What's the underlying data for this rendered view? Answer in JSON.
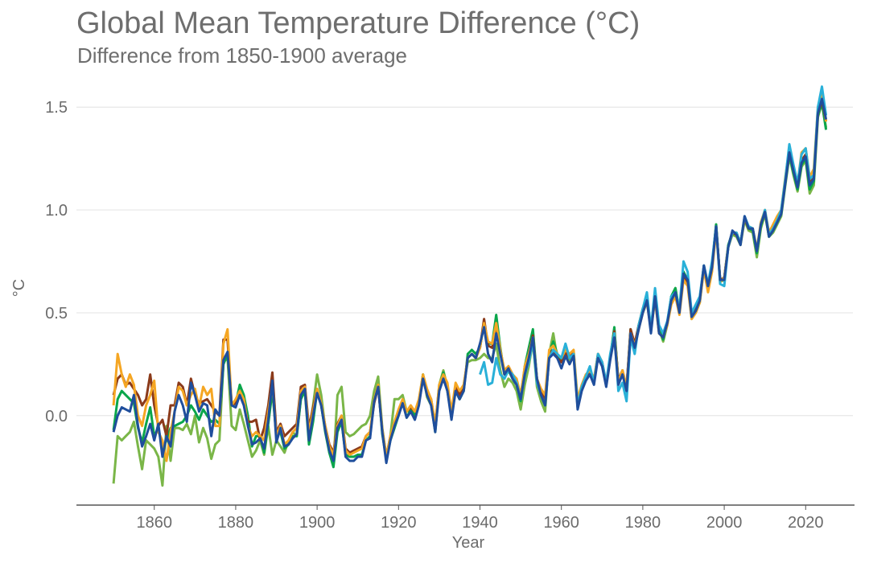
{
  "chart_data": {
    "type": "line",
    "title": "Global Mean Temperature Difference (°C)",
    "subtitle": "Difference from 1850-1900 average",
    "xlabel": "Year",
    "ylabel": "°C",
    "xlim": [
      1841,
      2032
    ],
    "ylim": [
      -0.435,
      1.63
    ],
    "xticks": [
      1860,
      1880,
      1900,
      1920,
      1940,
      1960,
      1980,
      2000,
      2020
    ],
    "yticks": [
      0.0,
      0.5,
      1.0,
      1.5
    ],
    "ytick_labels": [
      "0.0",
      "0.5",
      "1.0",
      "1.5"
    ],
    "grid": "horizontal",
    "legend": "none",
    "series": [
      {
        "color": "#7ab648",
        "start": 1850,
        "values": [
          -0.33,
          -0.1,
          -0.12,
          -0.1,
          -0.08,
          -0.03,
          -0.15,
          -0.26,
          -0.12,
          -0.14,
          -0.16,
          -0.2,
          -0.34,
          -0.05,
          -0.22,
          -0.06,
          -0.06,
          -0.07,
          -0.04,
          -0.09,
          0.0,
          -0.13,
          -0.06,
          -0.11,
          -0.21,
          -0.14,
          -0.12,
          0.26,
          0.28,
          -0.05,
          -0.07,
          0.03,
          -0.04,
          -0.12,
          -0.2,
          -0.17,
          -0.12,
          -0.19,
          -0.05,
          -0.19,
          -0.12,
          -0.15,
          -0.18,
          -0.12,
          -0.08,
          -0.1,
          0.08,
          0.12,
          -0.1,
          0.05,
          0.2,
          0.1,
          -0.06,
          -0.18,
          -0.24,
          0.1,
          0.14,
          -0.08,
          -0.1,
          -0.09,
          -0.07,
          -0.05,
          -0.04,
          0.0,
          0.12,
          0.19,
          -0.06,
          -0.2,
          -0.1,
          0.08,
          0.08,
          0.1,
          0.02,
          0.03,
          -0.01,
          0.07,
          0.2,
          0.09,
          0.05,
          -0.05,
          0.15,
          0.22,
          0.14,
          0.0,
          0.14,
          0.1,
          0.15,
          0.26,
          0.27,
          0.27,
          0.28,
          0.3,
          0.28,
          0.28,
          0.35,
          0.22,
          0.14,
          0.18,
          0.16,
          0.12,
          0.03,
          0.15,
          0.24,
          0.36,
          0.14,
          0.07,
          0.02,
          0.3,
          0.4,
          0.28,
          0.26,
          0.3,
          0.27,
          0.3,
          0.05,
          0.14,
          0.19,
          0.23,
          0.16,
          0.29,
          0.25,
          0.15,
          0.29,
          0.42,
          0.17,
          0.22,
          0.12,
          0.41,
          0.33,
          0.43,
          0.51,
          0.57,
          0.41,
          0.6,
          0.42,
          0.36,
          0.44,
          0.58,
          0.62,
          0.5,
          0.69,
          0.65,
          0.47,
          0.5,
          0.55,
          0.72,
          0.62,
          0.72,
          0.93,
          0.65,
          0.66,
          0.82,
          0.88,
          0.87,
          0.83,
          0.95,
          0.9,
          0.89,
          0.77,
          0.91,
          0.98,
          0.87,
          0.89,
          0.93,
          0.97,
          1.12,
          1.26,
          1.17,
          1.09,
          1.21,
          1.24,
          1.08,
          1.12,
          1.45,
          1.52,
          1.4
        ]
      },
      {
        "color": "#0aa64b",
        "start": 1850,
        "values": [
          -0.07,
          0.08,
          0.12,
          0.1,
          0.08,
          0.06,
          -0.06,
          -0.13,
          -0.04,
          0.04,
          -0.1,
          -0.06,
          -0.16,
          -0.12,
          -0.06,
          -0.05,
          -0.04,
          -0.03,
          0.0,
          0.05,
          0.02,
          -0.02,
          0.03,
          0.0,
          -0.03,
          -0.02,
          -0.04,
          0.25,
          0.3,
          0.05,
          0.06,
          0.15,
          0.1,
          0.0,
          -0.15,
          -0.1,
          -0.1,
          -0.18,
          -0.04,
          0.12,
          -0.1,
          -0.08,
          -0.16,
          -0.14,
          -0.1,
          -0.1,
          0.08,
          0.12,
          -0.14,
          -0.03,
          0.12,
          0.05,
          -0.08,
          -0.18,
          -0.25,
          -0.08,
          -0.03,
          -0.19,
          -0.2,
          -0.2,
          -0.19,
          -0.19,
          -0.12,
          -0.1,
          0.08,
          0.15,
          -0.09,
          -0.21,
          -0.12,
          -0.06,
          0.0,
          0.07,
          -0.01,
          0.03,
          0.0,
          0.06,
          0.2,
          0.1,
          0.06,
          -0.08,
          0.14,
          0.21,
          0.12,
          0.0,
          0.12,
          0.08,
          0.12,
          0.3,
          0.32,
          0.3,
          0.33,
          0.45,
          0.35,
          0.35,
          0.49,
          0.33,
          0.2,
          0.22,
          0.18,
          0.15,
          0.07,
          0.24,
          0.33,
          0.42,
          0.18,
          0.1,
          0.05,
          0.3,
          0.36,
          0.3,
          0.27,
          0.32,
          0.28,
          0.31,
          0.04,
          0.13,
          0.18,
          0.22,
          0.16,
          0.3,
          0.26,
          0.15,
          0.28,
          0.43,
          0.16,
          0.21,
          0.13,
          0.42,
          0.34,
          0.44,
          0.52,
          0.58,
          0.42,
          0.6,
          0.42,
          0.37,
          0.45,
          0.58,
          0.62,
          0.51,
          0.7,
          0.66,
          0.49,
          0.51,
          0.57,
          0.73,
          0.63,
          0.73,
          0.93,
          0.66,
          0.67,
          0.83,
          0.89,
          0.88,
          0.84,
          0.96,
          0.91,
          0.9,
          0.79,
          0.92,
          0.99,
          0.87,
          0.9,
          0.94,
          0.98,
          1.13,
          1.27,
          1.18,
          1.1,
          1.22,
          1.25,
          1.1,
          1.14,
          1.46,
          1.52,
          1.39
        ]
      },
      {
        "color": "#8b3a1a",
        "start": 1850,
        "values": [
          0.1,
          0.18,
          0.2,
          0.15,
          0.16,
          0.13,
          0.1,
          0.05,
          0.08,
          0.2,
          0.05,
          -0.05,
          -0.02,
          -0.1,
          0.05,
          0.05,
          0.16,
          0.14,
          0.05,
          0.18,
          0.1,
          0.06,
          0.07,
          0.08,
          0.05,
          0.02,
          0.0,
          0.37,
          0.37,
          0.05,
          0.06,
          0.12,
          0.06,
          -0.03,
          -0.03,
          -0.02,
          -0.12,
          -0.06,
          0.05,
          0.21,
          -0.08,
          -0.04,
          -0.1,
          -0.08,
          -0.06,
          -0.04,
          0.14,
          0.15,
          -0.06,
          0.04,
          0.13,
          0.05,
          -0.05,
          -0.14,
          -0.18,
          -0.04,
          0.0,
          -0.16,
          -0.18,
          -0.17,
          -0.16,
          -0.15,
          -0.1,
          -0.08,
          0.06,
          0.14,
          -0.07,
          -0.2,
          -0.1,
          -0.04,
          0.02,
          0.06,
          0.02,
          0.04,
          0.02,
          0.06,
          0.18,
          0.12,
          0.08,
          -0.05,
          0.14,
          0.19,
          0.14,
          0.01,
          0.14,
          0.1,
          0.14,
          0.28,
          0.3,
          0.28,
          0.33,
          0.47,
          0.34,
          0.33,
          0.44,
          0.3,
          0.22,
          0.24,
          0.2,
          0.17,
          0.1,
          0.22,
          0.3,
          0.39,
          0.18,
          0.12,
          0.08,
          0.3,
          0.32,
          0.28,
          0.26,
          0.31,
          0.28,
          0.31,
          0.06,
          0.14,
          0.19,
          0.22,
          0.17,
          0.3,
          0.26,
          0.16,
          0.28,
          0.41,
          0.17,
          0.22,
          0.14,
          0.42,
          0.35,
          0.44,
          0.52,
          0.56,
          0.42,
          0.58,
          0.4,
          0.38,
          0.45,
          0.56,
          0.6,
          0.5,
          0.68,
          0.65,
          0.48,
          0.52,
          0.57,
          0.72,
          0.62,
          0.72,
          0.92,
          0.66,
          0.67,
          0.82,
          0.89,
          0.88,
          0.84,
          0.96,
          0.91,
          0.91,
          0.8,
          0.93,
          0.99,
          0.88,
          0.91,
          0.95,
          0.99,
          1.14,
          1.28,
          1.2,
          1.12,
          1.24,
          1.27,
          1.13,
          1.16,
          1.47,
          1.53,
          1.43
        ]
      },
      {
        "color": "#f5a623",
        "start": 1850,
        "values": [
          0.05,
          0.3,
          0.2,
          0.14,
          0.2,
          0.15,
          0.0,
          -0.05,
          0.05,
          0.1,
          0.17,
          -0.08,
          -0.12,
          -0.22,
          -0.08,
          0.02,
          0.14,
          0.12,
          0.05,
          0.1,
          0.13,
          0.04,
          0.14,
          0.1,
          0.13,
          -0.05,
          -0.05,
          0.35,
          0.42,
          0.05,
          0.08,
          0.12,
          0.08,
          -0.05,
          -0.1,
          -0.08,
          -0.1,
          -0.12,
          0.02,
          0.15,
          -0.1,
          -0.05,
          -0.14,
          -0.12,
          -0.08,
          -0.06,
          0.12,
          0.14,
          -0.08,
          0.02,
          0.13,
          0.06,
          -0.05,
          -0.15,
          -0.19,
          -0.05,
          0.0,
          -0.17,
          -0.19,
          -0.18,
          -0.17,
          -0.16,
          -0.1,
          -0.08,
          0.08,
          0.15,
          -0.07,
          -0.2,
          -0.1,
          -0.03,
          0.03,
          0.08,
          0.02,
          0.05,
          0.02,
          0.08,
          0.2,
          0.13,
          0.08,
          -0.04,
          0.15,
          0.2,
          0.16,
          0.02,
          0.16,
          0.12,
          0.15,
          0.28,
          0.3,
          0.28,
          0.33,
          0.45,
          0.36,
          0.35,
          0.45,
          0.32,
          0.22,
          0.24,
          0.2,
          0.18,
          0.1,
          0.24,
          0.3,
          0.38,
          0.18,
          0.13,
          0.1,
          0.32,
          0.34,
          0.3,
          0.28,
          0.32,
          0.3,
          0.32,
          0.08,
          0.15,
          0.2,
          0.22,
          0.18,
          0.3,
          0.25,
          0.15,
          0.28,
          0.4,
          0.16,
          0.22,
          0.14,
          0.4,
          0.34,
          0.42,
          0.5,
          0.55,
          0.42,
          0.56,
          0.4,
          0.38,
          0.44,
          0.54,
          0.58,
          0.49,
          0.66,
          0.63,
          0.47,
          0.5,
          0.55,
          0.71,
          0.6,
          0.7,
          0.9,
          0.65,
          0.67,
          0.82,
          0.89,
          0.89,
          0.84,
          0.96,
          0.92,
          0.91,
          0.81,
          0.94,
          1.0,
          0.89,
          0.93,
          0.97,
          1.0,
          1.16,
          1.3,
          1.21,
          1.13,
          1.28,
          1.3,
          1.16,
          1.2,
          1.5,
          1.56,
          1.43
        ]
      },
      {
        "color": "#29b0d8",
        "start": 1940,
        "values": [
          0.2,
          0.26,
          0.15,
          0.16,
          0.28,
          0.2,
          0.18,
          0.22,
          0.2,
          0.16,
          0.08,
          0.2,
          0.26,
          0.36,
          0.16,
          0.1,
          0.05,
          0.28,
          0.32,
          0.3,
          0.28,
          0.35,
          0.28,
          0.3,
          0.05,
          0.14,
          0.19,
          0.24,
          0.16,
          0.3,
          0.26,
          0.16,
          0.3,
          0.4,
          0.12,
          0.16,
          0.07,
          0.38,
          0.3,
          0.44,
          0.52,
          0.6,
          0.42,
          0.62,
          0.44,
          0.4,
          0.46,
          0.58,
          0.6,
          0.52,
          0.75,
          0.7,
          0.5,
          0.54,
          0.58,
          0.73,
          0.64,
          0.75,
          0.92,
          0.64,
          0.63,
          0.82,
          0.89,
          0.89,
          0.84,
          0.97,
          0.92,
          0.91,
          0.8,
          0.93,
          1.0,
          0.88,
          0.91,
          0.95,
          1.0,
          1.15,
          1.32,
          1.22,
          1.13,
          1.27,
          1.3,
          1.15,
          1.17,
          1.5,
          1.6,
          1.46
        ]
      },
      {
        "color": "#1f4e9c",
        "start": 1850,
        "values": [
          -0.08,
          0.0,
          0.04,
          0.03,
          0.02,
          0.1,
          -0.05,
          -0.15,
          -0.1,
          -0.04,
          -0.12,
          -0.04,
          -0.2,
          -0.1,
          -0.15,
          0.02,
          0.1,
          0.05,
          -0.03,
          0.16,
          0.1,
          0.02,
          0.06,
          0.05,
          -0.1,
          0.03,
          0.0,
          0.27,
          0.31,
          0.05,
          0.04,
          0.1,
          0.05,
          -0.05,
          -0.14,
          -0.13,
          -0.11,
          -0.16,
          -0.02,
          0.17,
          -0.13,
          -0.06,
          -0.15,
          -0.14,
          -0.11,
          -0.09,
          0.1,
          0.13,
          -0.12,
          0.0,
          0.11,
          0.05,
          -0.07,
          -0.17,
          -0.22,
          -0.06,
          -0.02,
          -0.2,
          -0.22,
          -0.22,
          -0.2,
          -0.2,
          -0.12,
          -0.11,
          0.07,
          0.14,
          -0.08,
          -0.23,
          -0.12,
          -0.05,
          0.0,
          0.06,
          -0.01,
          0.02,
          -0.02,
          0.05,
          0.18,
          0.1,
          0.05,
          -0.08,
          0.12,
          0.18,
          0.12,
          -0.02,
          0.12,
          0.08,
          0.12,
          0.28,
          0.3,
          0.28,
          0.35,
          0.43,
          0.3,
          0.26,
          0.4,
          0.3,
          0.2,
          0.23,
          0.18,
          0.15,
          0.08,
          0.2,
          0.28,
          0.38,
          0.18,
          0.1,
          0.05,
          0.28,
          0.3,
          0.28,
          0.23,
          0.29,
          0.25,
          0.29,
          0.03,
          0.12,
          0.17,
          0.2,
          0.15,
          0.28,
          0.24,
          0.14,
          0.27,
          0.38,
          0.15,
          0.2,
          0.12,
          0.4,
          0.33,
          0.42,
          0.5,
          0.56,
          0.4,
          0.58,
          0.4,
          0.38,
          0.45,
          0.56,
          0.6,
          0.5,
          0.69,
          0.66,
          0.48,
          0.51,
          0.56,
          0.73,
          0.63,
          0.72,
          0.92,
          0.66,
          0.66,
          0.82,
          0.9,
          0.88,
          0.83,
          0.97,
          0.91,
          0.91,
          0.8,
          0.93,
          0.99,
          0.87,
          0.9,
          0.94,
          0.98,
          1.13,
          1.28,
          1.19,
          1.11,
          1.23,
          1.26,
          1.12,
          1.15,
          1.47,
          1.54,
          1.44
        ]
      }
    ]
  }
}
